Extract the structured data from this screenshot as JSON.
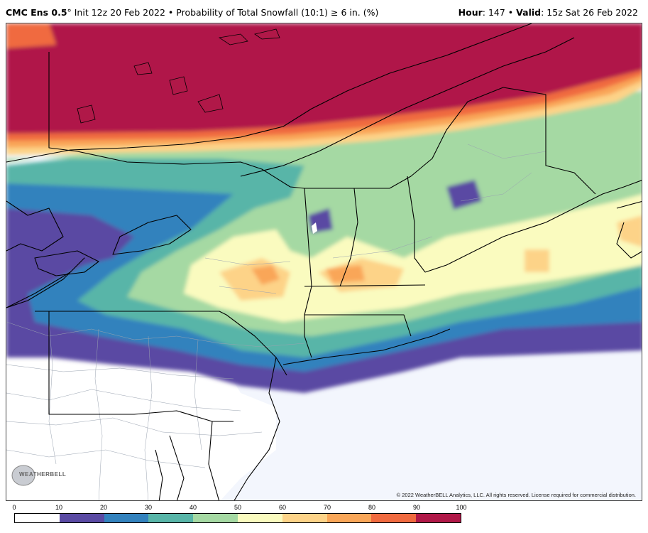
{
  "header": {
    "model": "CMC Ens 0.5",
    "degree": "°",
    "init": " Init 12z 20 Feb 2022",
    "sep": " • ",
    "product": "Probability of Total Snowfall (10:1) ≥ 6 in. (%)",
    "hour_label": "Hour",
    "hour_value": ": 147",
    "valid_label": "Valid",
    "valid_value": ": 15z Sat 26 Feb 2022"
  },
  "map": {
    "copyright": "© 2022 WeatherBELL Analytics, LLC. All rights reserved. License required for commercial distribution.",
    "logo_text": "WEATHERBELL",
    "ocean_color": "#f3f6fd",
    "boundary_color": "#000000",
    "county_color": "#9aa3b0"
  },
  "legend": {
    "ticks": [
      "0",
      "10",
      "20",
      "30",
      "40",
      "50",
      "60",
      "70",
      "80",
      "90",
      "100"
    ],
    "colors": [
      "#ffffff",
      "#5a4aa3",
      "#3382bd",
      "#58b5a8",
      "#a5d9a3",
      "#fafbbf",
      "#fdd388",
      "#f9a658",
      "#f06a3f",
      "#b01848"
    ]
  }
}
